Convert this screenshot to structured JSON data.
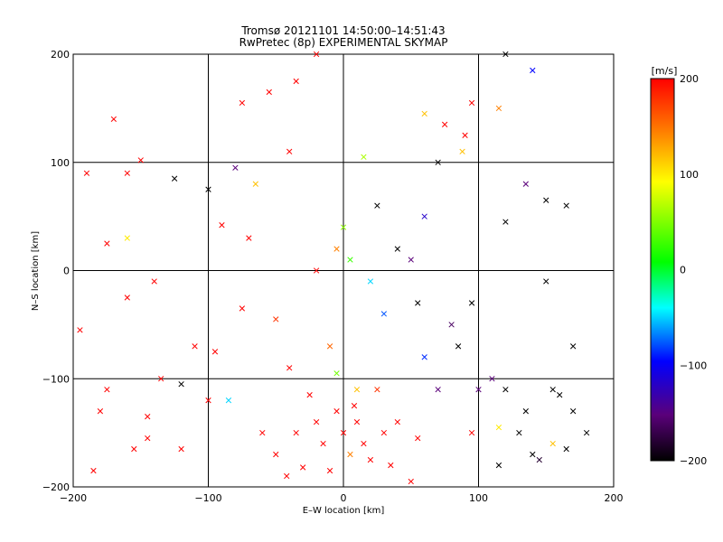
{
  "chart_data": {
    "type": "scatter",
    "title": "Tromsø 20121101 14:50:00–14:51:43",
    "subtitle": "RwPretec (8p) EXPERIMENTAL SKYMAP",
    "xlabel": "E–W location [km]",
    "ylabel": "N–S location [km]",
    "xlim": [
      -200,
      200
    ],
    "ylim": [
      -200,
      200
    ],
    "x_ticks": [
      "−200",
      "−100",
      "0",
      "100",
      "200"
    ],
    "y_ticks": [
      "−200",
      "−100",
      "0",
      "100",
      "200"
    ],
    "grid": true,
    "colorbar": {
      "label": "[m/s]",
      "range": [
        -200,
        200
      ],
      "ticks": [
        "200",
        "100",
        "0",
        "−100",
        "−200"
      ],
      "colormap": [
        "#000000",
        "#5a007a",
        "#0000ff",
        "#00ffff",
        "#00ff00",
        "#ffff00",
        "#ff8000",
        "#ff0000"
      ]
    },
    "markers": [
      "+",
      "x"
    ],
    "points": [
      [
        -170,
        140,
        200,
        "x"
      ],
      [
        -150,
        102,
        200,
        "x"
      ],
      [
        -125,
        85,
        -200,
        "x"
      ],
      [
        -90,
        42,
        200,
        "x"
      ],
      [
        -110,
        -70,
        200,
        "x"
      ],
      [
        -160,
        30,
        100,
        "x"
      ],
      [
        -135,
        -100,
        200,
        "x"
      ],
      [
        -180,
        -130,
        200,
        "x"
      ],
      [
        -120,
        -165,
        200,
        "x"
      ],
      [
        -100,
        -120,
        200,
        "x"
      ],
      [
        -60,
        -150,
        200,
        "x"
      ],
      [
        -30,
        -182,
        200,
        "x"
      ],
      [
        -42,
        -190,
        200,
        "x"
      ],
      [
        -85,
        -120,
        -50,
        "x"
      ],
      [
        -120,
        -105,
        -200,
        "x"
      ],
      [
        10,
        -140,
        200,
        "x"
      ],
      [
        0,
        -150,
        200,
        "x"
      ],
      [
        -5,
        -130,
        200,
        "x"
      ],
      [
        15,
        -160,
        200,
        "x"
      ],
      [
        -15,
        -160,
        200,
        "x"
      ],
      [
        5,
        -170,
        150,
        "x"
      ],
      [
        20,
        -175,
        200,
        "x"
      ],
      [
        -20,
        -140,
        200,
        "x"
      ],
      [
        8,
        -125,
        200,
        "x"
      ],
      [
        30,
        -150,
        200,
        "x"
      ],
      [
        -5,
        20,
        150,
        "x"
      ],
      [
        5,
        10,
        20,
        "x"
      ],
      [
        0,
        40,
        50,
        "x"
      ],
      [
        -20,
        0,
        200,
        "x"
      ],
      [
        20,
        -10,
        -50,
        "x"
      ],
      [
        30,
        -40,
        -80,
        "x"
      ],
      [
        40,
        20,
        -200,
        "x"
      ],
      [
        60,
        50,
        -120,
        "x"
      ],
      [
        25,
        60,
        -200,
        "x"
      ],
      [
        15,
        105,
        60,
        "x"
      ],
      [
        -80,
        95,
        -150,
        "x"
      ],
      [
        -75,
        -35,
        200,
        "x"
      ],
      [
        -50,
        -45,
        180,
        "x"
      ],
      [
        -40,
        -90,
        200,
        "x"
      ],
      [
        -10,
        -70,
        160,
        "x"
      ],
      [
        90,
        125,
        200,
        "x"
      ],
      [
        95,
        -30,
        -200,
        "x"
      ],
      [
        110,
        -100,
        -150,
        "x"
      ],
      [
        150,
        -10,
        -200,
        "x"
      ],
      [
        180,
        -150,
        -200,
        "x"
      ],
      [
        120,
        -110,
        -200,
        "x"
      ],
      [
        130,
        -150,
        -200,
        "x"
      ],
      [
        160,
        -115,
        -200,
        "x"
      ],
      [
        135,
        -130,
        -200,
        "x"
      ],
      [
        170,
        -130,
        -200,
        "x"
      ],
      [
        145,
        -175,
        -180,
        "x"
      ],
      [
        165,
        -165,
        -200,
        "x"
      ],
      [
        155,
        -110,
        -200,
        "x"
      ],
      [
        140,
        -170,
        -200,
        "x"
      ],
      [
        115,
        -180,
        -200,
        "x"
      ],
      [
        140,
        185,
        -100,
        "x"
      ],
      [
        165,
        60,
        -200,
        "x"
      ],
      [
        135,
        80,
        -150,
        "x"
      ],
      [
        120,
        200,
        -200,
        "x"
      ],
      [
        115,
        150,
        150,
        "x"
      ],
      [
        95,
        155,
        200,
        "x"
      ],
      [
        75,
        135,
        200,
        "x"
      ],
      [
        60,
        145,
        120,
        "x"
      ],
      [
        88,
        110,
        120,
        "x"
      ],
      [
        70,
        100,
        -200,
        "x"
      ],
      [
        85,
        -70,
        -200,
        "x"
      ],
      [
        100,
        -110,
        -150,
        "x"
      ],
      [
        70,
        -110,
        -150,
        "x"
      ],
      [
        60,
        -80,
        -90,
        "x"
      ],
      [
        155,
        -160,
        120,
        "x"
      ],
      [
        115,
        -145,
        100,
        "x"
      ],
      [
        95,
        -150,
        200,
        "x"
      ],
      [
        55,
        -155,
        200,
        "x"
      ],
      [
        -25,
        -205,
        200,
        "x"
      ],
      [
        -50,
        -170,
        200,
        "x"
      ],
      [
        -95,
        -75,
        200,
        "x"
      ],
      [
        -145,
        -135,
        200,
        "x"
      ],
      [
        -155,
        -165,
        200,
        "x"
      ],
      [
        -175,
        -110,
        200,
        "x"
      ],
      [
        -160,
        -25,
        200,
        "x"
      ],
      [
        -175,
        25,
        200,
        "x"
      ],
      [
        -160,
        90,
        200,
        "x"
      ],
      [
        -75,
        155,
        200,
        "x"
      ],
      [
        -55,
        165,
        200,
        "x"
      ],
      [
        -35,
        175,
        200,
        "x"
      ],
      [
        -20,
        200,
        200,
        "x"
      ],
      [
        -70,
        30,
        200,
        "x"
      ],
      [
        -100,
        75,
        -200,
        "x"
      ],
      [
        -65,
        80,
        120,
        "x"
      ],
      [
        -40,
        110,
        200,
        "x"
      ],
      [
        120,
        45,
        -200,
        "x"
      ],
      [
        150,
        65,
        -200,
        "x"
      ],
      [
        170,
        -70,
        -200,
        "x"
      ],
      [
        80,
        -50,
        -160,
        "x"
      ],
      [
        55,
        -30,
        -200,
        "x"
      ],
      [
        50,
        10,
        -150,
        "x"
      ],
      [
        -5,
        -95,
        40,
        "x"
      ],
      [
        10,
        -110,
        120,
        "x"
      ],
      [
        -25,
        -115,
        200,
        "x"
      ],
      [
        25,
        -110,
        180,
        "x"
      ],
      [
        40,
        -140,
        200,
        "x"
      ],
      [
        -35,
        -150,
        200,
        "x"
      ],
      [
        -10,
        -185,
        200,
        "x"
      ],
      [
        35,
        -180,
        200,
        "x"
      ],
      [
        50,
        -195,
        200,
        "x"
      ],
      [
        -140,
        -10,
        200,
        "x"
      ],
      [
        -145,
        -155,
        200,
        "x"
      ],
      [
        -185,
        -185,
        200,
        "x"
      ],
      [
        -195,
        -55,
        200,
        "x"
      ],
      [
        -190,
        90,
        200,
        "x"
      ]
    ]
  }
}
